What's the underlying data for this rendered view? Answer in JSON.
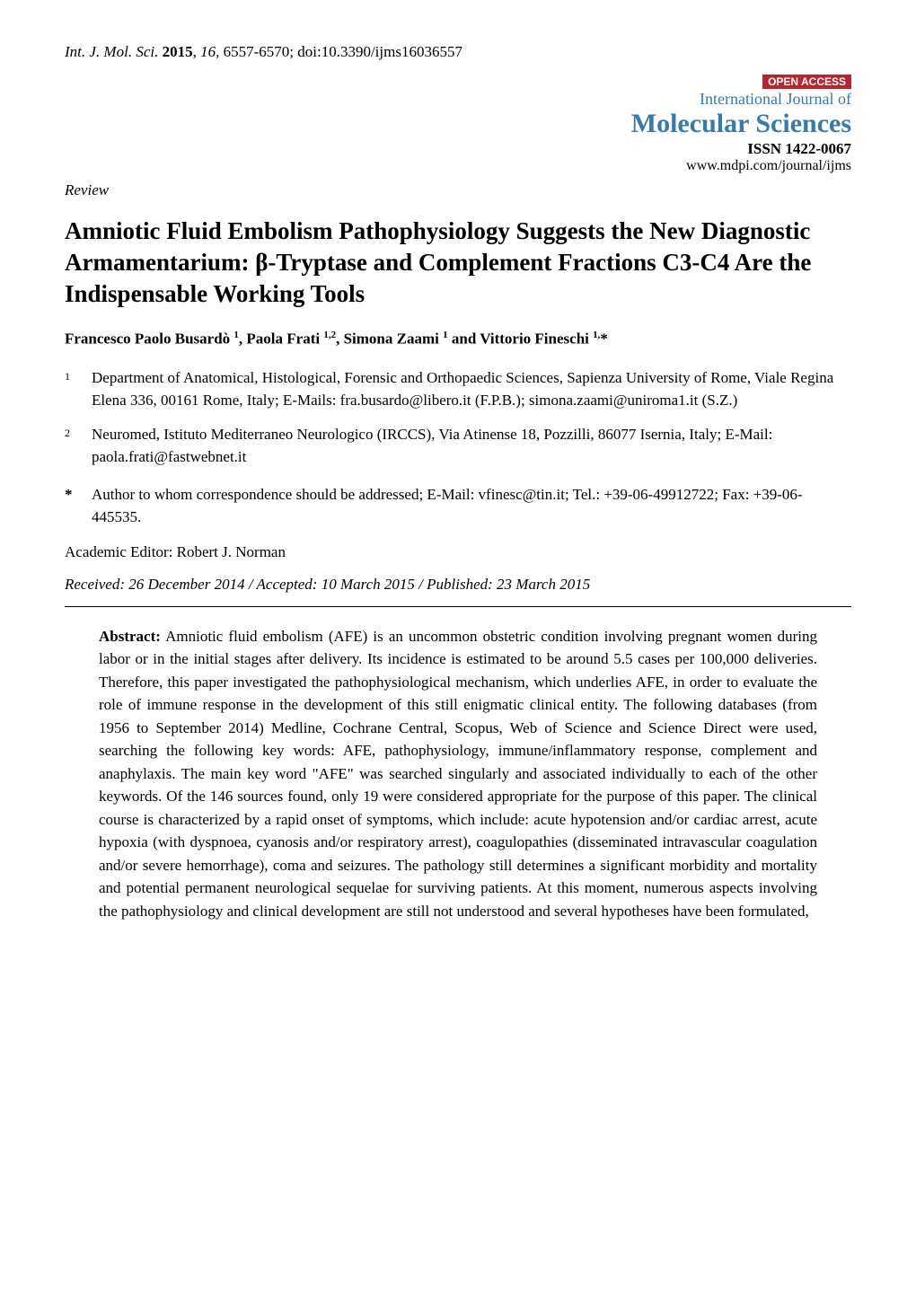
{
  "header": {
    "journal_abbr": "Int. J. Mol. Sci.",
    "year": "2015",
    "volume": "16",
    "pages": "6557-6570",
    "doi": "doi:10.3390/ijms16036557"
  },
  "journal_block": {
    "open_access": "OPEN ACCESS",
    "intl_line": "International Journal of",
    "name": "Molecular Sciences",
    "issn": "ISSN 1422-0067",
    "url": "www.mdpi.com/journal/ijms",
    "colors": {
      "open_access_bg": "#b8252f",
      "open_access_text": "#ffffff",
      "journal_text": "#3a7aa8"
    }
  },
  "article_type": "Review",
  "title": "Amniotic Fluid Embolism Pathophysiology Suggests the New Diagnostic Armamentarium: β-Tryptase and Complement Fractions C3-C4 Are the Indispensable Working Tools",
  "authors_line": "Francesco Paolo Busardò ¹, Paola Frati ¹,², Simona Zaami ¹ and Vittorio Fineschi ¹,*",
  "affiliations": [
    {
      "num": "1",
      "text": "Department of Anatomical, Histological, Forensic and Orthopaedic Sciences, Sapienza University of Rome, Viale Regina Elena 336, 00161 Rome, Italy; E-Mails: fra.busardo@libero.it (F.P.B.); simona.zaami@uniroma1.it (S.Z.)"
    },
    {
      "num": "2",
      "text": "Neuromed, Istituto Mediterraneo Neurologico (IRCCS), Via Atinense 18, Pozzilli, 86077 Isernia, Italy; E-Mail: paola.frati@fastwebnet.it"
    }
  ],
  "correspondence": {
    "star": "*",
    "text": "Author to whom correspondence should be addressed; E-Mail: vfinesc@tin.it; Tel.: +39-06-49912722; Fax: +39-06-445535."
  },
  "academic_editor": "Academic Editor: Robert J. Norman",
  "dates": "Received: 26 December 2014 / Accepted: 10 March 2015 / Published: 23 March 2015",
  "abstract": {
    "label": "Abstract:",
    "text": " Amniotic fluid embolism (AFE) is an uncommon obstetric condition involving pregnant women during labor or in the initial stages after delivery. Its incidence is estimated to be around 5.5 cases per 100,000 deliveries. Therefore, this paper investigated the pathophysiological mechanism, which underlies AFE, in order to evaluate the role of immune response in the development of this still enigmatic clinical entity. The following databases (from 1956 to September 2014) Medline, Cochrane Central, Scopus, Web of Science and Science Direct were used, searching the following key words: AFE, pathophysiology, immune/inflammatory response, complement and anaphylaxis. The main key word \"AFE\" was searched singularly and associated individually to each of the other keywords. Of the 146 sources found, only 19 were considered appropriate for the purpose of this paper. The clinical course is characterized by a rapid onset of symptoms, which include: acute hypotension and/or cardiac arrest, acute hypoxia (with dyspnoea, cyanosis and/or respiratory arrest), coagulopathies (disseminated intravascular coagulation and/or severe hemorrhage), coma and seizures. The pathology still determines a significant morbidity and mortality and potential permanent neurological sequelae for surviving patients. At this moment, numerous aspects involving the pathophysiology and clinical development are still not understood and several hypotheses have been formulated,"
  },
  "styling": {
    "page_bg": "#ffffff",
    "text_color": "#000000",
    "divider_color": "#000000",
    "body_font": "Times New Roman",
    "title_fontsize": 27,
    "body_fontsize": 17,
    "journal_name_fontsize": 30
  }
}
